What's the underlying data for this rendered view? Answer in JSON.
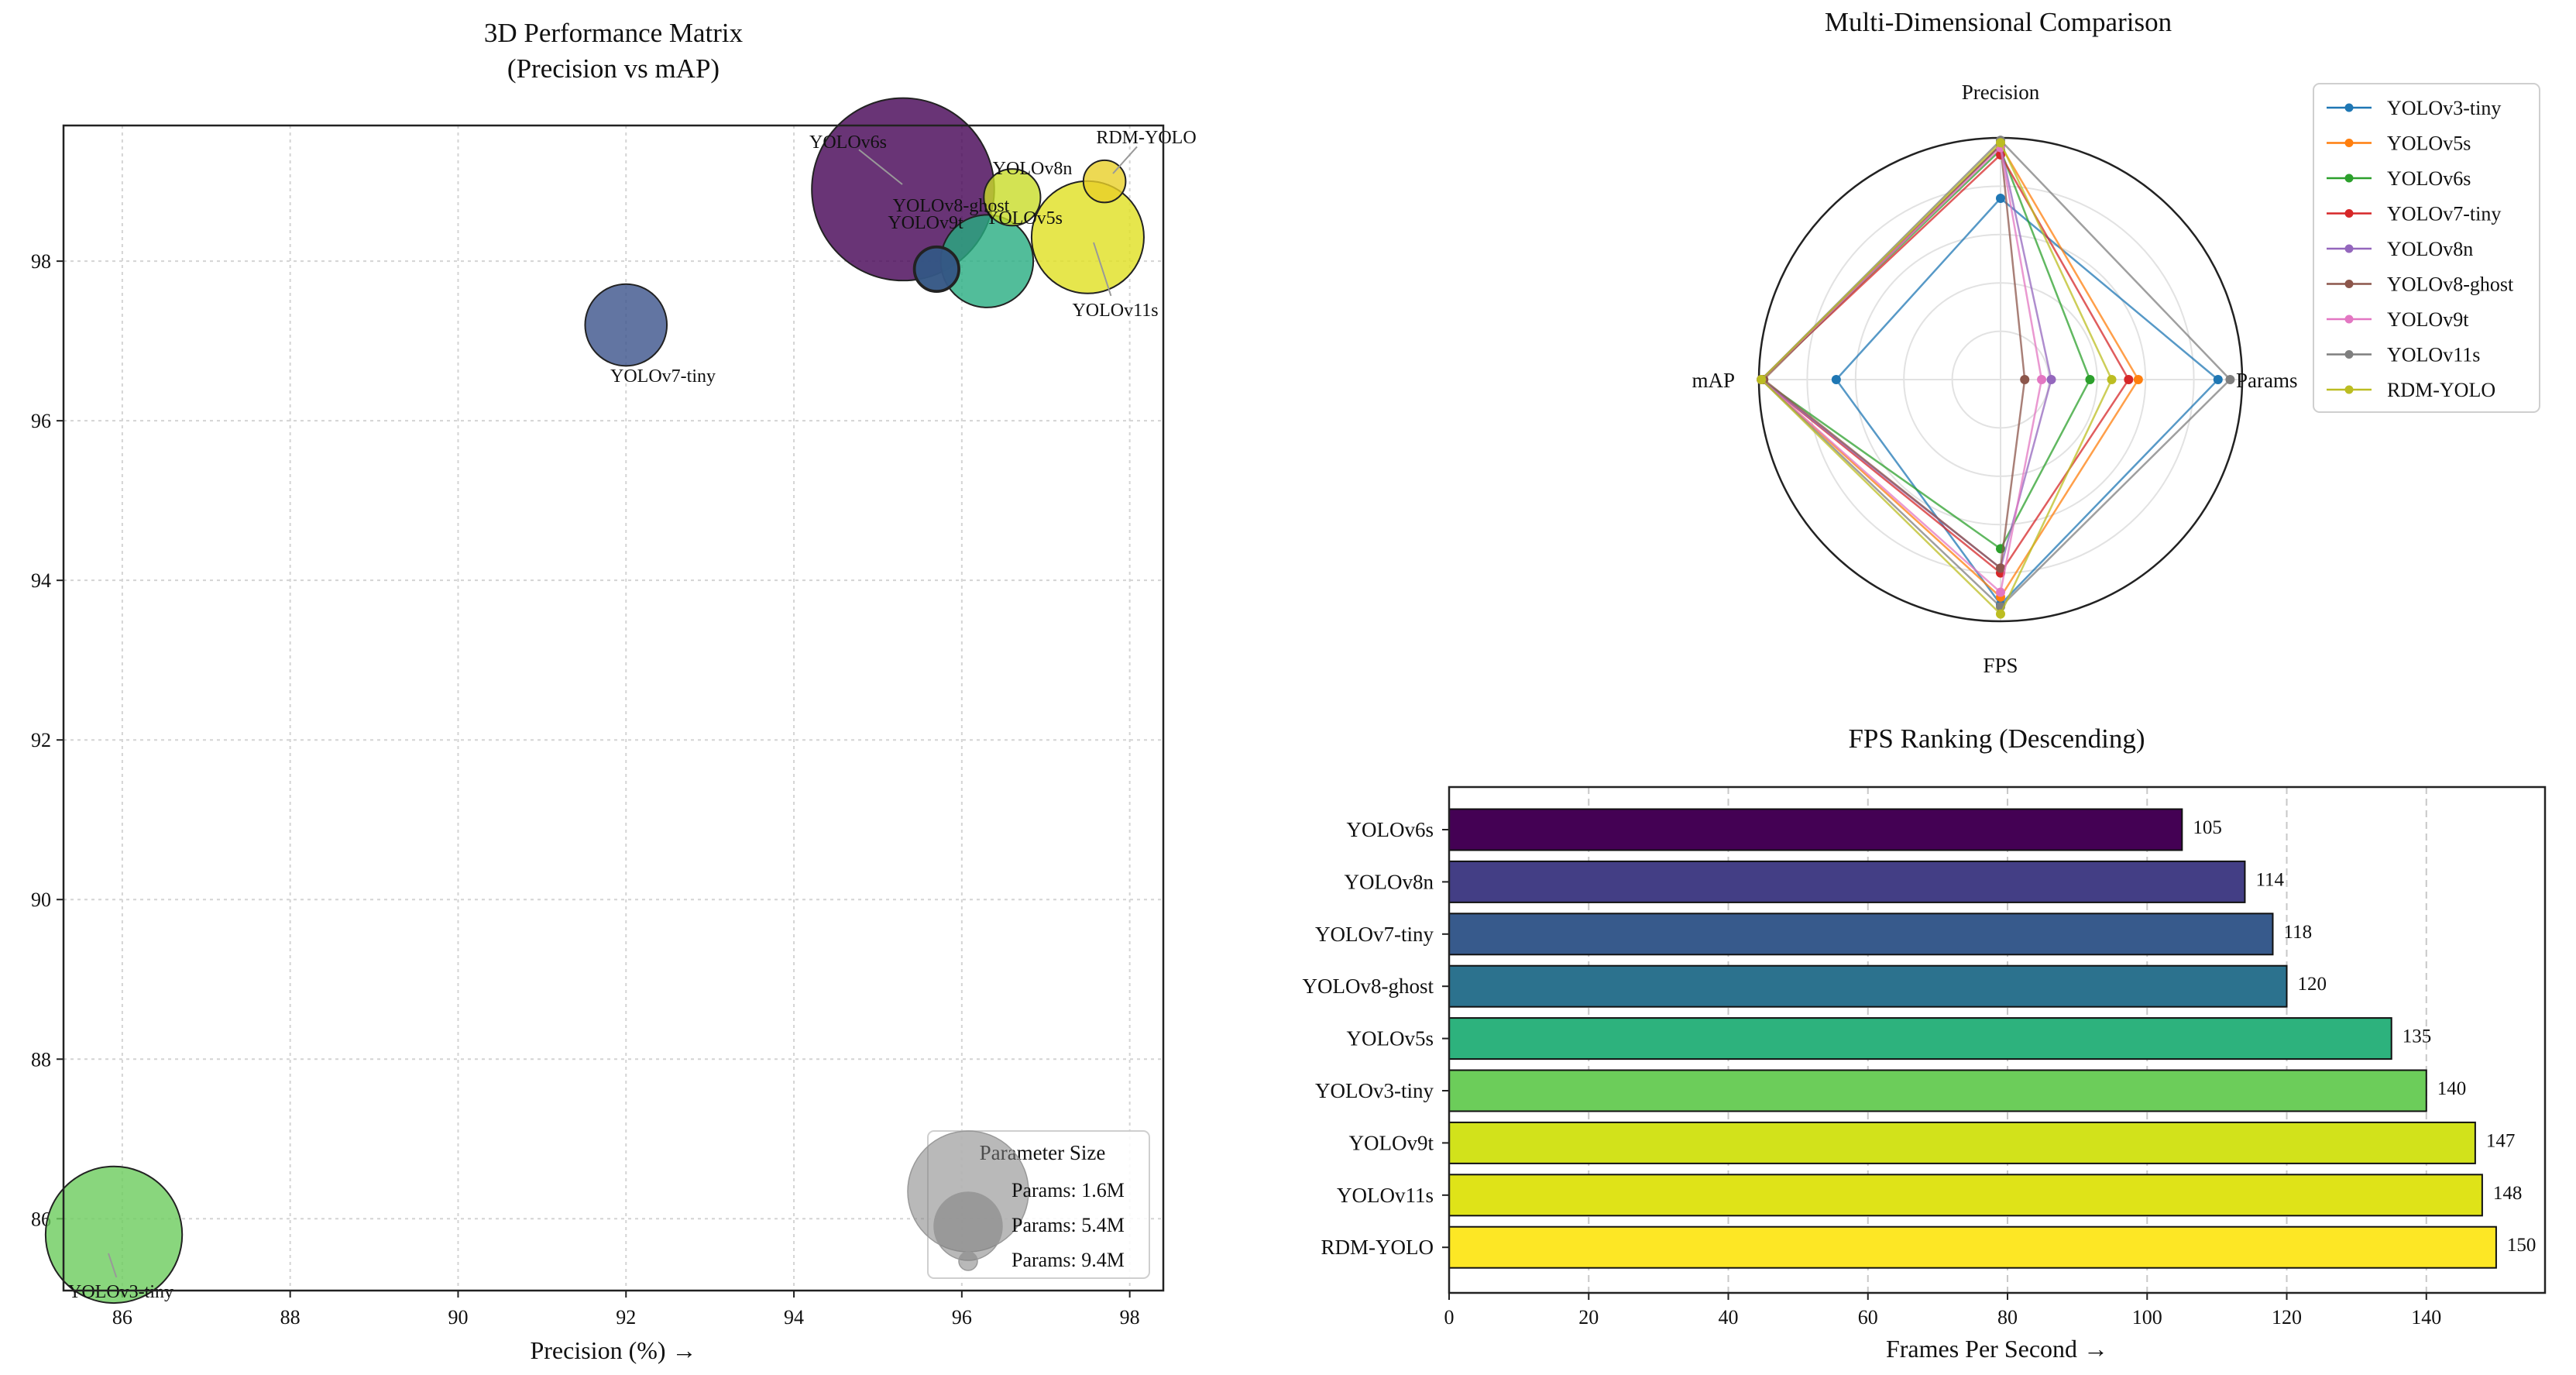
{
  "chart_data": [
    {
      "type": "scatter",
      "title": "3D Performance Matrix",
      "subtitle": "(Precision vs mAP)",
      "xlabel": "Precision (%) →",
      "ylabel": "",
      "xlim": [
        85.3,
        98.4
      ],
      "ylim": [
        85.1,
        99.7
      ],
      "xticks": [
        "86",
        "88",
        "90",
        "92",
        "94",
        "96",
        "98"
      ],
      "yticks": [
        "86",
        "88",
        "90",
        "92",
        "94",
        "96",
        "98"
      ],
      "grid": true,
      "points": [
        {
          "name": "YOLOv3-tiny",
          "precision": 85.9,
          "map": 85.8,
          "params": 12.1,
          "color": "#6ccc5c"
        },
        {
          "name": "YOLOv5s",
          "precision": 96.3,
          "map": 98.0,
          "params": 7.2,
          "color": "#27ad81"
        },
        {
          "name": "YOLOv6s",
          "precision": 95.3,
          "map": 98.9,
          "params": 17.2,
          "color": "#440154"
        },
        {
          "name": "YOLOv7-tiny",
          "precision": 92.0,
          "map": 97.2,
          "params": 6.0,
          "color": "#3b528b"
        },
        {
          "name": "YOLOv8n",
          "precision": 96.6,
          "map": 98.8,
          "params": 3.2,
          "color": "#c8dc28"
        },
        {
          "name": "YOLOv8-ghost",
          "precision": 95.7,
          "map": 97.9,
          "params": 1.7,
          "color": "#31688e"
        },
        {
          "name": "YOLOv9t",
          "precision": 95.7,
          "map": 97.9,
          "params": 2.0,
          "color": "#440154"
        },
        {
          "name": "YOLOv11s",
          "precision": 97.5,
          "map": 98.3,
          "params": 9.4,
          "color": "#e0e020"
        },
        {
          "name": "RDM-YOLO",
          "precision": 97.7,
          "map": 99.0,
          "params": 1.6,
          "color": "#e8cf28"
        }
      ],
      "annotations": [
        "YOLOv6s",
        "YOLOv8-ghost",
        "YOLOv9t",
        "YOLOv8n",
        "YOLOv5s",
        "RDM-YOLO",
        "YOLOv11s",
        "YOLOv7-tiny",
        "YOLOv3-tiny"
      ],
      "legend": {
        "title": "Parameter Size",
        "position": "bottom-right",
        "entries": [
          {
            "label": "Params: 1.6M",
            "size": "large"
          },
          {
            "label": "Params: 5.4M",
            "size": "medium"
          },
          {
            "label": "Params: 9.4M",
            "size": "small"
          }
        ]
      }
    },
    {
      "type": "radar",
      "title": "Multi-Dimensional Comparison",
      "axes": [
        "Precision",
        "Params",
        "FPS",
        "mAP"
      ],
      "rlim": [
        0,
        1
      ],
      "series": [
        {
          "name": "YOLOv3-tiny",
          "color": "#1f77b4",
          "values": [
            0.75,
            0.9,
            0.93,
            0.68
          ]
        },
        {
          "name": "YOLOv5s",
          "color": "#ff7f0e",
          "values": [
            0.97,
            0.57,
            0.9,
            0.99
          ]
        },
        {
          "name": "YOLOv6s",
          "color": "#2ca02c",
          "values": [
            0.95,
            0.37,
            0.7,
            0.99
          ]
        },
        {
          "name": "YOLOv7-tiny",
          "color": "#d62728",
          "values": [
            0.93,
            0.53,
            0.8,
            0.99
          ]
        },
        {
          "name": "YOLOv8n",
          "color": "#9467bd",
          "values": [
            0.97,
            0.21,
            0.78,
            0.99
          ]
        },
        {
          "name": "YOLOv8-ghost",
          "color": "#8c564b",
          "values": [
            0.97,
            0.1,
            0.78,
            0.98
          ]
        },
        {
          "name": "YOLOv9t",
          "color": "#e377c2",
          "values": [
            0.96,
            0.17,
            0.88,
            0.99
          ]
        },
        {
          "name": "YOLOv11s",
          "color": "#7f7f7f",
          "values": [
            0.99,
            0.95,
            0.94,
            0.99
          ]
        },
        {
          "name": "RDM-YOLO",
          "color": "#bcbd22",
          "values": [
            0.98,
            0.46,
            0.97,
            0.99
          ]
        }
      ],
      "legend_position": "top-right"
    },
    {
      "type": "bar",
      "orientation": "horizontal",
      "title": "FPS Ranking (Descending)",
      "xlabel": "Frames Per Second →",
      "xlim": [
        0,
        157
      ],
      "xticks": [
        "0",
        "20",
        "40",
        "60",
        "80",
        "100",
        "120",
        "140"
      ],
      "categories": [
        "YOLOv6s",
        "YOLOv8n",
        "YOLOv7-tiny",
        "YOLOv8-ghost",
        "YOLOv5s",
        "YOLOv3-tiny",
        "YOLOv9t",
        "YOLOv11s",
        "RDM-YOLO"
      ],
      "values": [
        105,
        114,
        118,
        120,
        135,
        140,
        147,
        148,
        150
      ],
      "value_labels": [
        "105",
        "114",
        "118",
        "120",
        "135",
        "140",
        "147",
        "148",
        "150"
      ],
      "colors": [
        "#440154",
        "#433e85",
        "#375a8c",
        "#2c728e",
        "#2db27d",
        "#6ccd5a",
        "#d2e21b",
        "#dfe318",
        "#fde725"
      ],
      "grid": "x"
    }
  ]
}
